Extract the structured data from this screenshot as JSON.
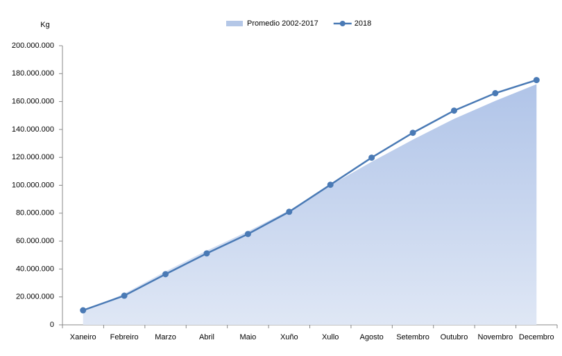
{
  "chart_data": {
    "type": "line",
    "y_label": "Kg",
    "categories": [
      "Xaneiro",
      "Febreiro",
      "Marzo",
      "Abril",
      "Maio",
      "Xuño",
      "Xullo",
      "Agosto",
      "Setembro",
      "Outubro",
      "Novembro",
      "Decembro"
    ],
    "series": [
      {
        "name": "Promedio 2002-2017",
        "type": "area",
        "color": "#b4c7e7",
        "values": [
          9400000,
          22400000,
          38300000,
          53200000,
          67000000,
          82000000,
          100000000,
          116800000,
          132700000,
          147600000,
          160500000,
          172400000
        ]
      },
      {
        "name": "2018",
        "type": "line",
        "color": "#4a7ab5",
        "values": [
          10400000,
          20900000,
          36300000,
          51200000,
          65100000,
          81000000,
          100400000,
          119800000,
          137600000,
          153500000,
          166000000,
          175400000
        ]
      }
    ],
    "ylim": [
      0,
      200000000
    ],
    "yticks": [
      0,
      {
        "value": 20000000,
        "label": "20.000.000"
      },
      {
        "value": 40000000,
        "label": "40.000.000"
      },
      {
        "value": 60000000,
        "label": "60.000.000"
      },
      {
        "value": 80000000,
        "label": "80.000.000"
      },
      {
        "value": 100000000,
        "label": "100.000.000"
      },
      {
        "value": 120000000,
        "label": "120.000.000"
      },
      {
        "value": 140000000,
        "label": "140.000.000"
      },
      {
        "value": 160000000,
        "label": "160.000.000"
      },
      {
        "value": 180000000,
        "label": "180.000.000"
      },
      {
        "value": 200000000,
        "label": "200.000.000"
      }
    ],
    "legend": "top"
  }
}
